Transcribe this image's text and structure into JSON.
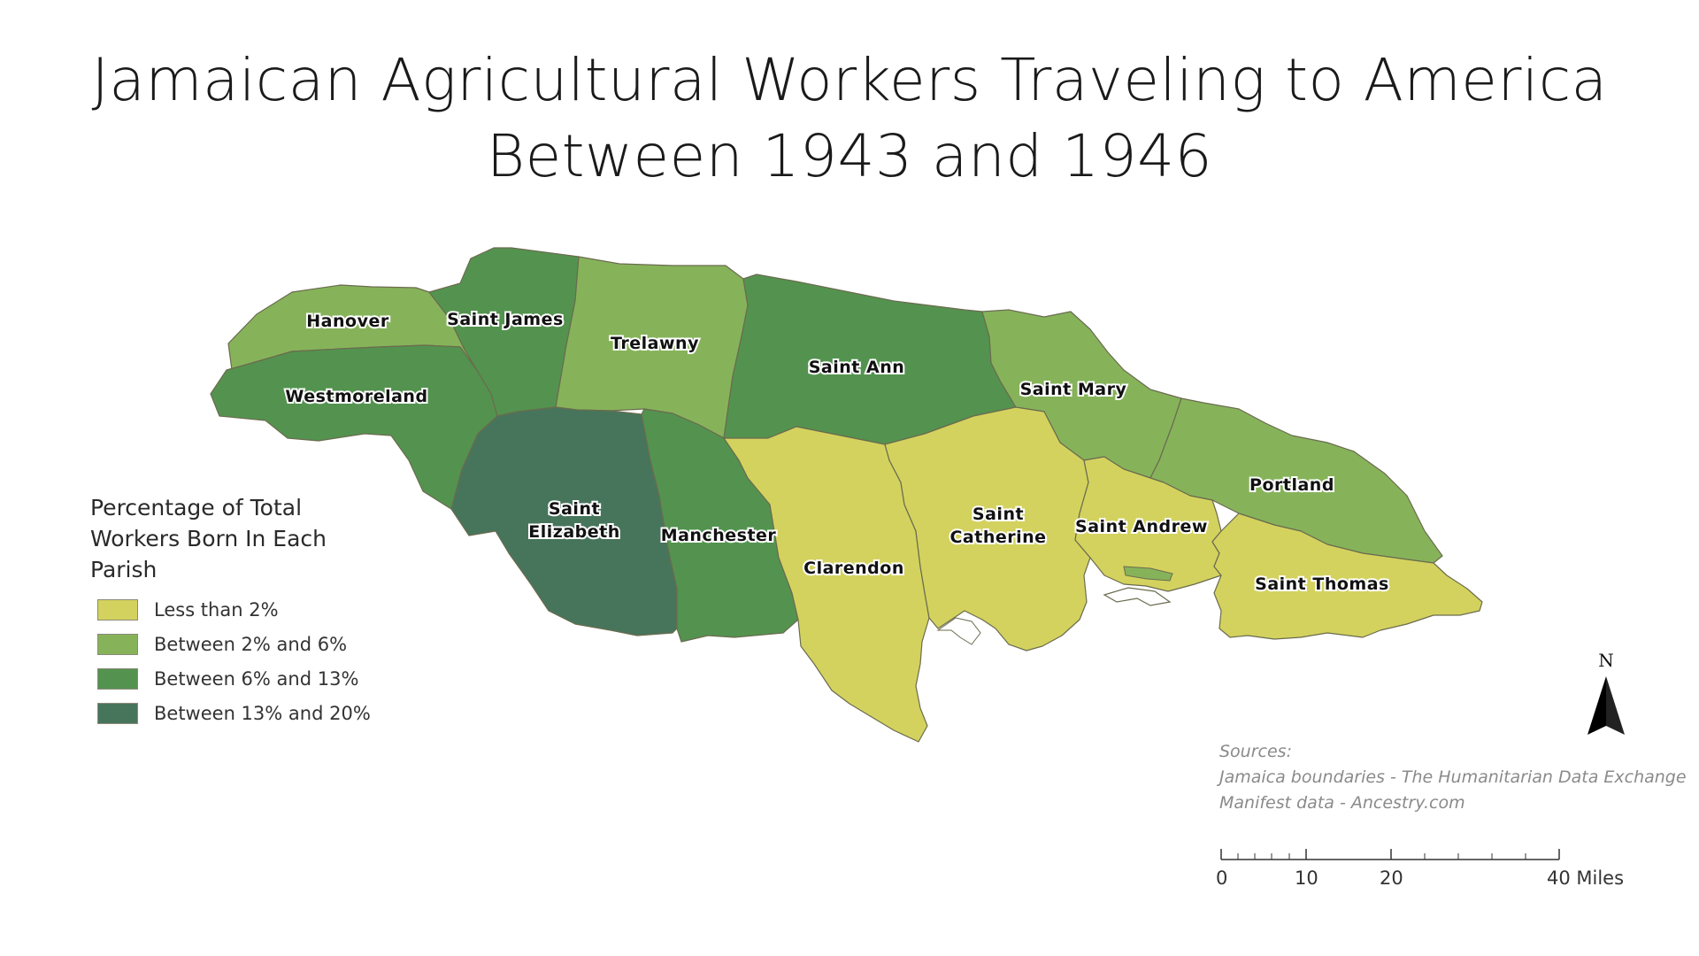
{
  "title": {
    "line1": "Jamaican Agricultural Workers Traveling to America",
    "line2": "Between 1943 and 1946"
  },
  "colors": {
    "less_than_2": "#d3d25e",
    "between_2_6": "#86b35a",
    "between_6_13": "#53934f",
    "between_13_20": "#47755c"
  },
  "parishes": [
    {
      "name": "Hanover",
      "category": "between_2_6"
    },
    {
      "name": "Saint James",
      "category": "between_6_13"
    },
    {
      "name": "Trelawny",
      "category": "between_2_6"
    },
    {
      "name": "Saint Ann",
      "category": "between_6_13"
    },
    {
      "name": "Saint Mary",
      "category": "between_2_6"
    },
    {
      "name": "Portland",
      "category": "between_2_6"
    },
    {
      "name": "Westmoreland",
      "category": "between_6_13"
    },
    {
      "name": "Saint Elizabeth",
      "category": "between_13_20"
    },
    {
      "name": "Manchester",
      "category": "between_6_13"
    },
    {
      "name": "Clarendon",
      "category": "less_than_2"
    },
    {
      "name": "Saint Catherine",
      "category": "less_than_2"
    },
    {
      "name": "Saint Andrew",
      "category": "less_than_2"
    },
    {
      "name": "Saint Thomas",
      "category": "less_than_2"
    }
  ],
  "legend": {
    "title": "Percentage of Total Workers Born In Each Parish",
    "items": [
      {
        "label": "Less than 2%",
        "category": "less_than_2"
      },
      {
        "label": "Between 2% and 6%",
        "category": "between_2_6"
      },
      {
        "label": "Between 6% and 13%",
        "category": "between_6_13"
      },
      {
        "label": "Between 13% and 20%",
        "category": "between_13_20"
      }
    ]
  },
  "sources": {
    "heading": "Sources:",
    "line1": "Jamaica boundaries - The Humanitarian Data Exchange",
    "line2": "Manifest data - Ancestry.com"
  },
  "north_arrow": {
    "letter": "N"
  },
  "scale_bar": {
    "labels": [
      "0",
      "10",
      "20",
      "40 Miles"
    ]
  }
}
